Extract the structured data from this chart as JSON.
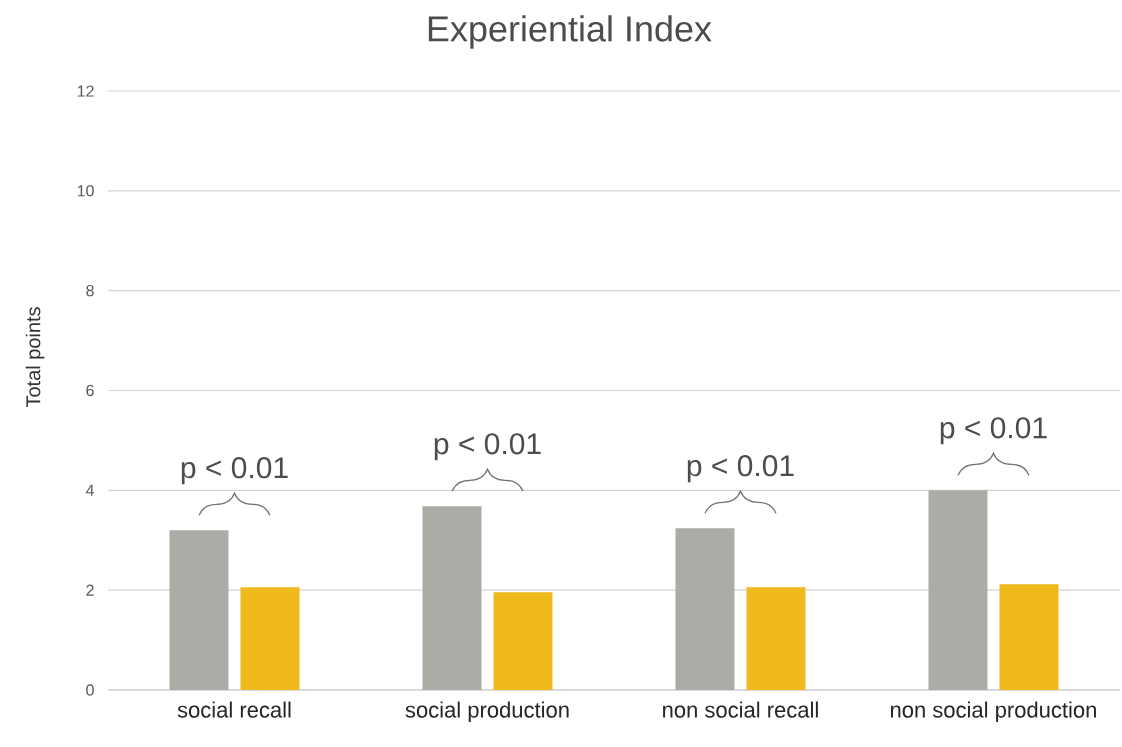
{
  "chart_data": {
    "type": "bar",
    "title": "Experiential Index",
    "ylabel": "Total points",
    "categories": [
      "social recall",
      "social production",
      "non social recall",
      "non social production"
    ],
    "series": [
      {
        "color": "#acaca6",
        "values": [
          3.2,
          3.68,
          3.24,
          4.0
        ]
      },
      {
        "color": "#f0b91e",
        "values": [
          2.06,
          1.96,
          2.06,
          2.12
        ]
      }
    ],
    "ylim": [
      0,
      12
    ],
    "yticks": [
      0,
      2,
      4,
      6,
      8,
      10,
      12
    ],
    "grid": "y",
    "annotations": [
      "p < 0.01",
      "p < 0.01",
      "p < 0.01",
      "p < 0.01"
    ]
  }
}
